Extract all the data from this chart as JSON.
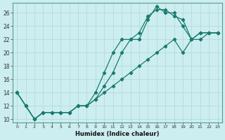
{
  "xlabel": "Humidex (Indice chaleur)",
  "bg_color": "#cceef0",
  "grid_color": "#b8dde0",
  "line_color": "#1a7a6e",
  "xlim": [
    -0.5,
    23.5
  ],
  "ylim": [
    9.5,
    27.5
  ],
  "xticks": [
    0,
    1,
    2,
    3,
    4,
    5,
    6,
    7,
    8,
    9,
    10,
    11,
    12,
    13,
    14,
    15,
    16,
    17,
    18,
    19,
    20,
    21,
    22,
    23
  ],
  "yticks": [
    10,
    12,
    14,
    16,
    18,
    20,
    22,
    24,
    26
  ],
  "series": [
    [
      14,
      12,
      10,
      11,
      11,
      11,
      11,
      12,
      12,
      13,
      15,
      17,
      20,
      22,
      23,
      25.5,
      26.5,
      26.5,
      25.5,
      25,
      22,
      23,
      23,
      23
    ],
    [
      14,
      12,
      10,
      11,
      11,
      11,
      11,
      12,
      12,
      14,
      17,
      20,
      22,
      22,
      22,
      25,
      27,
      26,
      26,
      24,
      22,
      23,
      23,
      23
    ],
    [
      14,
      12,
      10,
      11,
      11,
      11,
      11,
      12,
      12,
      13,
      14,
      15,
      16,
      17,
      18,
      19,
      20,
      21,
      22,
      20,
      22,
      22,
      23,
      23
    ]
  ]
}
